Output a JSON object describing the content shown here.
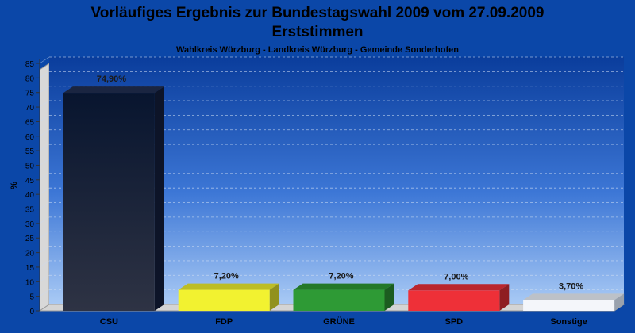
{
  "chart_data": {
    "type": "bar",
    "title": "Vorläufiges Ergebnis zur Bundestagswahl 2009 vom 27.09.2009",
    "title_line2": "Erststimmen",
    "subtitle": "Wahlkreis Würzburg - Landkreis Würzburg - Gemeinde Sonderhofen",
    "xlabel": "",
    "ylabel": "%",
    "ylim": [
      0,
      85
    ],
    "yticks": [
      0,
      5,
      10,
      15,
      20,
      25,
      30,
      35,
      40,
      45,
      50,
      55,
      60,
      65,
      70,
      75,
      80,
      85
    ],
    "grid": true,
    "categories": [
      "CSU",
      "FDP",
      "GRÜNE",
      "SPD",
      "Sonstige"
    ],
    "values": [
      74.9,
      7.2,
      7.2,
      7.0,
      3.7
    ],
    "value_labels": [
      "74,90%",
      "7,20%",
      "7,20%",
      "7,00%",
      "3,70%"
    ],
    "colors": [
      "#111c33",
      "#f2f230",
      "#2e9a35",
      "#ee3038",
      "#f4f6fa"
    ]
  }
}
